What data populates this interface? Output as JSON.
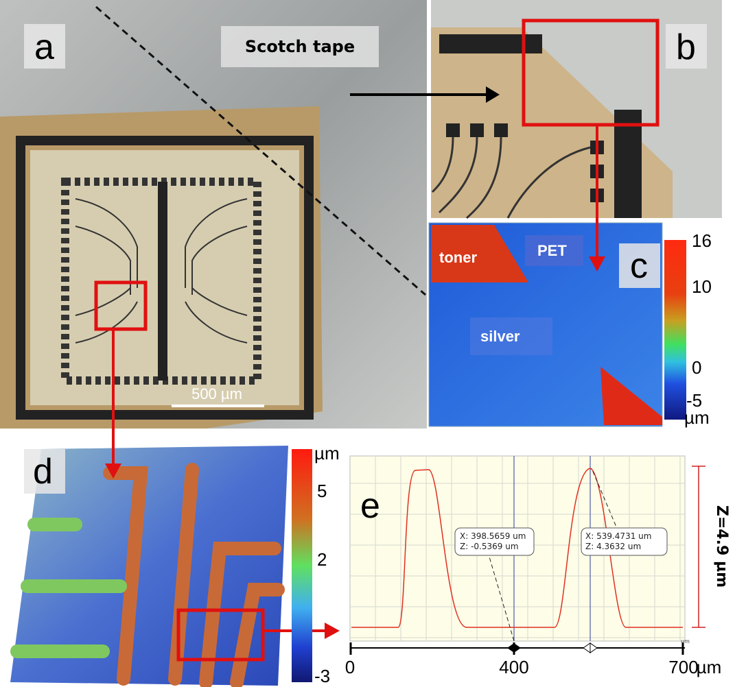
{
  "panels": {
    "a": {
      "label": "a",
      "tape_label": "Scotch tape",
      "scale_bar": "500 µm"
    },
    "b": {
      "label": "b"
    },
    "c": {
      "label": "c",
      "regions": [
        "toner",
        "PET",
        "silver"
      ],
      "colorbar": {
        "ticks": [
          "16",
          "10",
          "0",
          "-5"
        ],
        "unit": "µm"
      }
    },
    "d": {
      "label": "d",
      "colorbar": {
        "unit": "µm",
        "ticks": [
          "5",
          "2",
          "-3"
        ]
      }
    },
    "e": {
      "label": "e",
      "axis_unit_small": "um",
      "xticks": [
        "0",
        "400",
        "700"
      ],
      "x_unit": "µm",
      "callouts": [
        [
          "X: 398.5659 um",
          "Z: -0.5369 um"
        ],
        [
          "X: 539.4731 um",
          "Z: 4.3632 um"
        ]
      ],
      "height_label": "Z=4.9 µm"
    }
  }
}
